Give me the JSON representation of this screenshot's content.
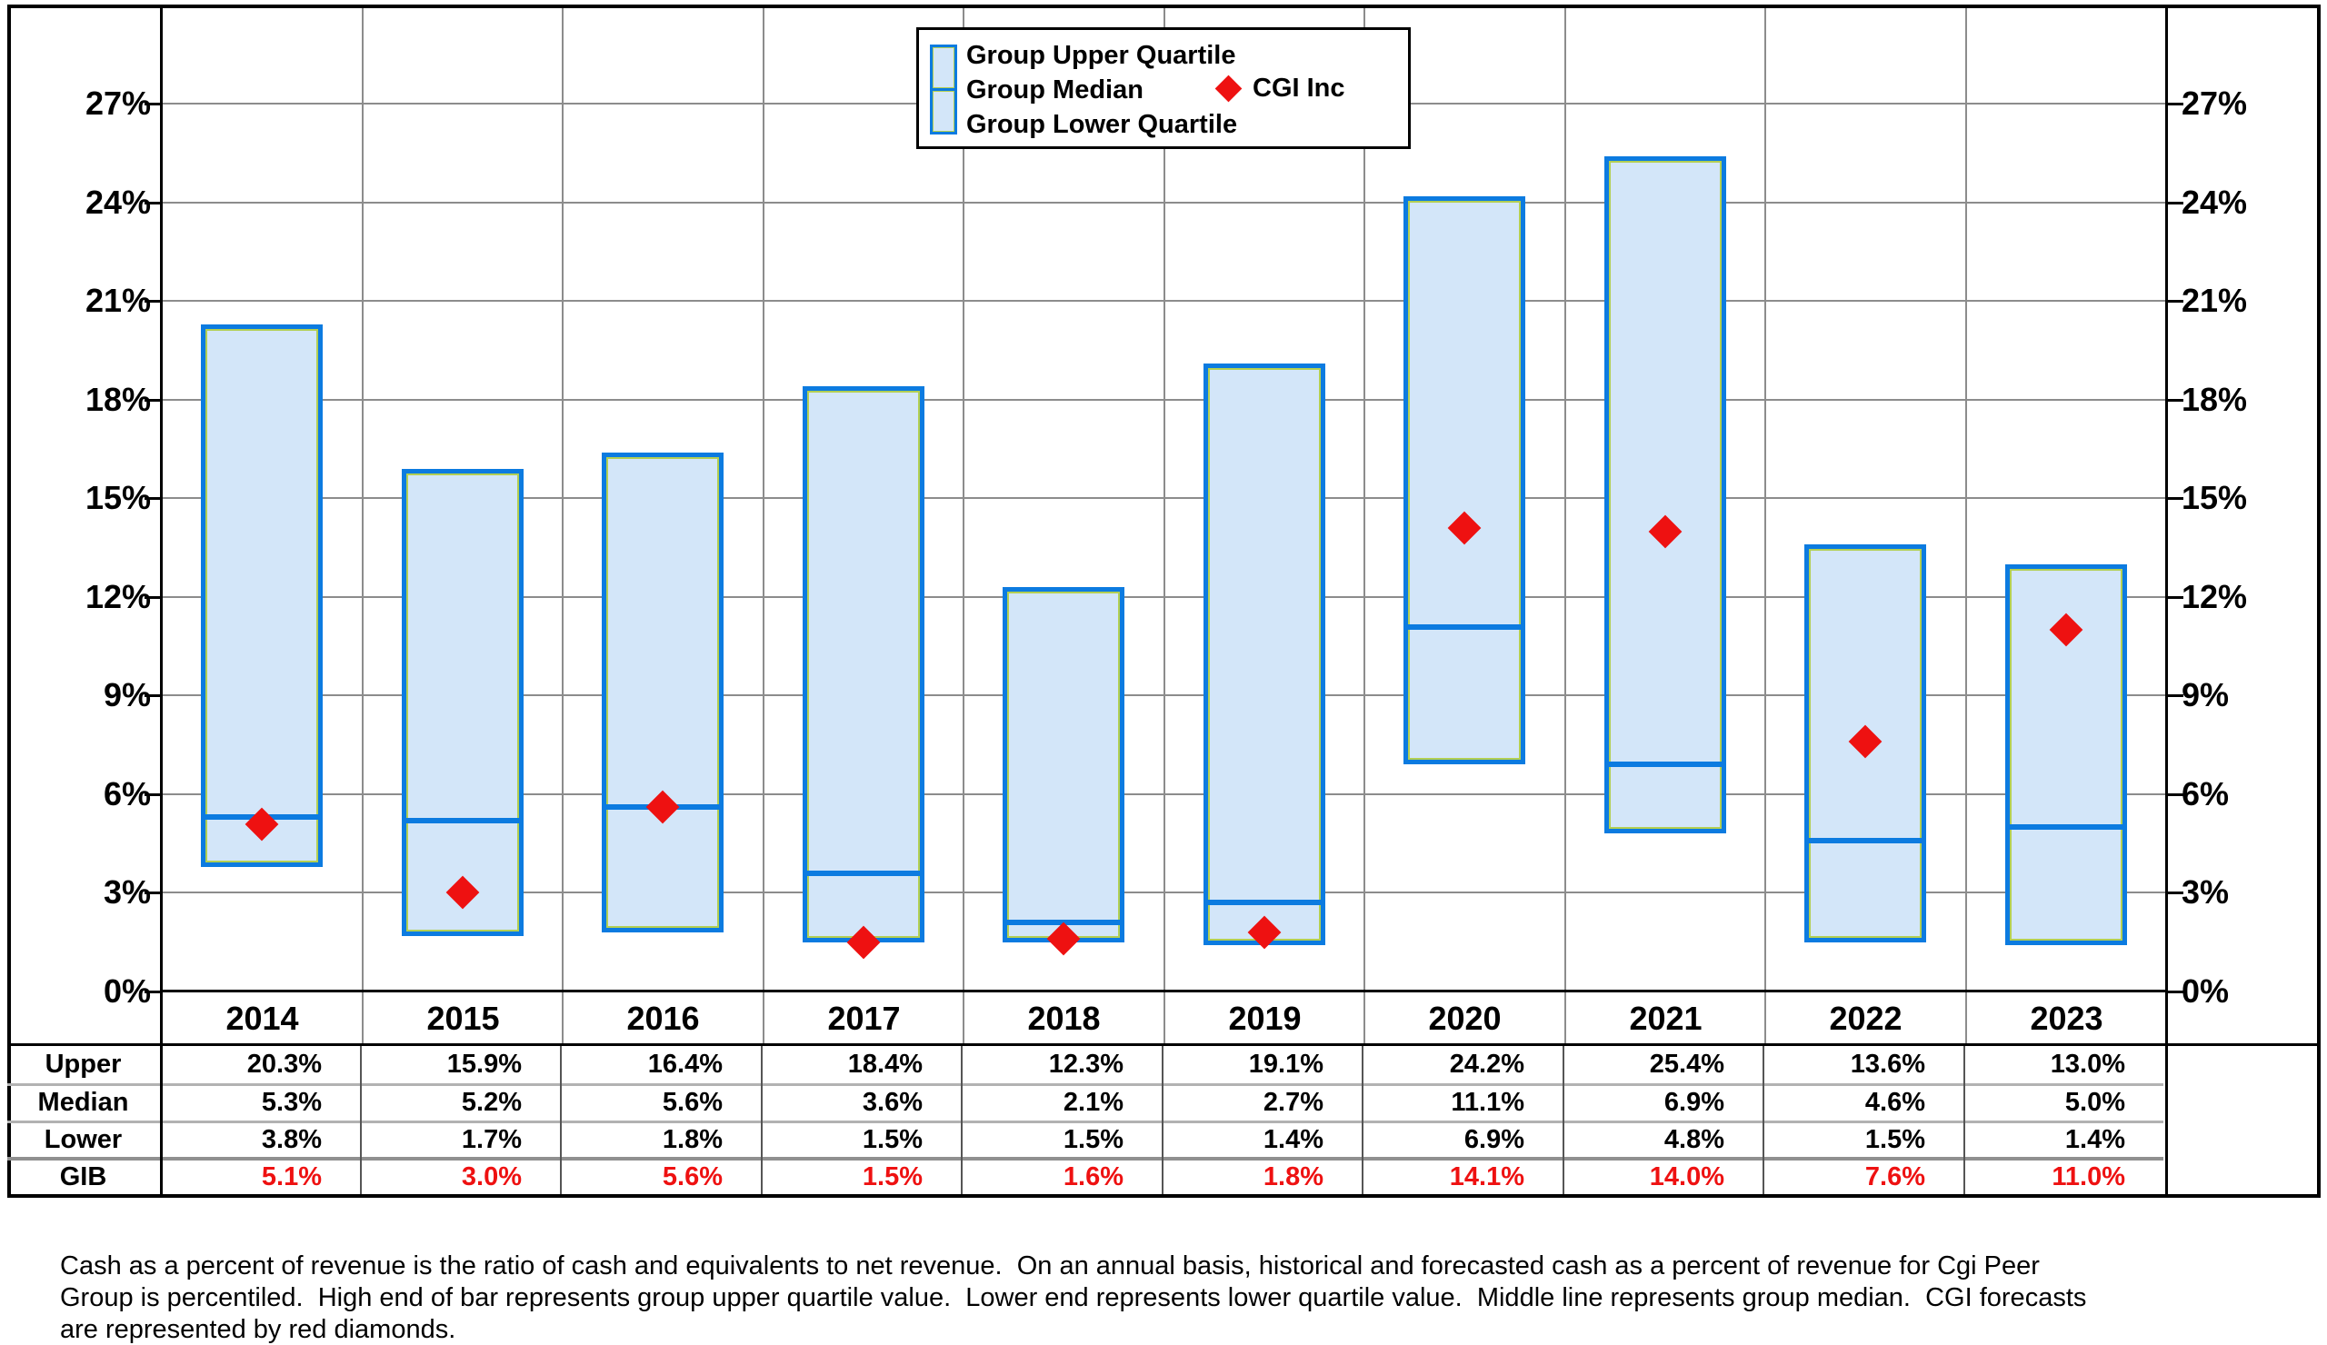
{
  "legend": {
    "items": [
      "Group Upper Quartile",
      "Group Median",
      "Group Lower Quartile"
    ],
    "cgi_label": "CGI Inc"
  },
  "chart_data": {
    "type": "bar",
    "subtype": "floating-quartile-range-bars-with-scatter-diamonds",
    "categories": [
      "2014",
      "2015",
      "2016",
      "2017",
      "2018",
      "2019",
      "2020",
      "2021",
      "2022",
      "2023"
    ],
    "series": [
      {
        "name": "Group Upper Quartile",
        "values": [
          20.3,
          15.9,
          16.4,
          18.4,
          12.3,
          19.1,
          24.2,
          25.4,
          13.6,
          13.0
        ]
      },
      {
        "name": "Group Median",
        "values": [
          5.3,
          5.2,
          5.6,
          3.6,
          2.1,
          2.7,
          11.1,
          6.9,
          4.6,
          5.0
        ]
      },
      {
        "name": "Group Lower Quartile",
        "values": [
          3.8,
          1.7,
          1.8,
          1.5,
          1.5,
          1.4,
          6.9,
          4.8,
          1.5,
          1.4
        ]
      },
      {
        "name": "CGI Inc",
        "values": [
          5.1,
          3.0,
          5.6,
          1.5,
          1.6,
          1.8,
          14.1,
          14.0,
          7.6,
          11.0
        ]
      }
    ],
    "ylim": [
      0,
      30
    ],
    "ytick_step": 3,
    "ytick_labels": [
      "0%",
      "3%",
      "6%",
      "9%",
      "12%",
      "15%",
      "18%",
      "21%",
      "24%",
      "27%"
    ],
    "y_axis_sides": "both",
    "grid": true,
    "legend_position": "top-center"
  },
  "table": {
    "row_labels": [
      "Upper",
      "Median",
      "Lower",
      "GIB"
    ]
  },
  "footnote": {
    "lines": [
      "Cash as a percent of revenue is the ratio of cash and equivalents to net revenue.  On an annual basis, historical and forecasted cash as a percent of revenue for Cgi Peer",
      "Group is percentiled.  High end of bar represents group upper quartile value.  Lower end represents lower quartile value.  Middle line represents group median.  CGI forecasts",
      "are represented by red diamonds."
    ]
  },
  "colors": {
    "bar_fill": "#d3e6f9",
    "bar_border": "#0c7be0",
    "bar_inner_outline": "#b3cf52",
    "median_line": "#0c7be0",
    "diamond": "#ee1111",
    "gridline": "#8c8c8c",
    "axis": "#000000",
    "gib_text": "#ee1111"
  }
}
